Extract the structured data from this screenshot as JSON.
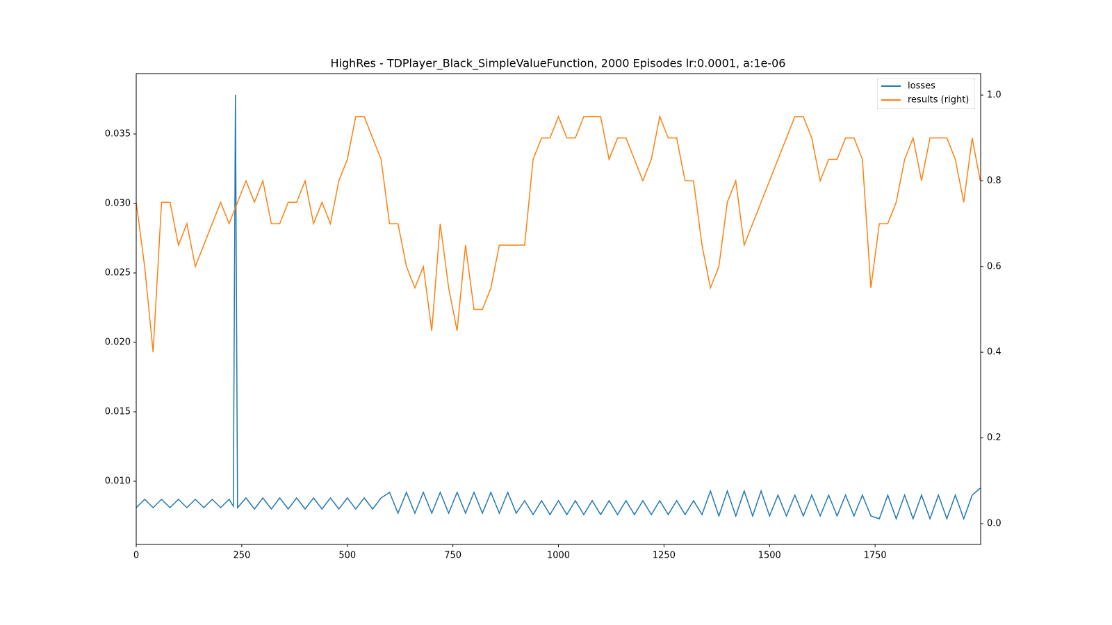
{
  "chart_data": {
    "type": "line",
    "title": "HighRes - TDPlayer_Black_SimpleValueFunction, 2000 Episodes lr:0.0001, a:1e-06",
    "xlim": [
      0,
      2000
    ],
    "xticks": [
      0,
      250,
      500,
      750,
      1000,
      1250,
      1500,
      1750
    ],
    "ylim": [
      0.00545,
      0.03935
    ],
    "yticks": [
      {
        "value": 0.01,
        "label": "0.010"
      },
      0.015,
      {
        "value": 0.02,
        "label": "0.020"
      },
      0.025,
      {
        "value": 0.03,
        "label": "0.030"
      },
      0.035
    ],
    "y2lim": [
      -0.0486,
      1.0502
    ],
    "y2ticks": [
      {
        "value": 0,
        "label": "0.0"
      },
      0.2,
      0.4,
      0.6,
      0.8,
      {
        "value": 1,
        "label": "1.0"
      }
    ],
    "legend": "upper right",
    "series": [
      {
        "name": "losses",
        "color": "#1f77b4",
        "x": [
          0,
          20,
          40,
          60,
          80,
          100,
          120,
          140,
          160,
          180,
          200,
          220,
          230,
          235,
          240,
          260,
          280,
          300,
          320,
          340,
          360,
          380,
          400,
          420,
          440,
          460,
          480,
          500,
          520,
          540,
          560,
          580,
          600,
          620,
          640,
          660,
          680,
          700,
          720,
          740,
          760,
          780,
          800,
          820,
          840,
          860,
          880,
          900,
          920,
          940,
          960,
          980,
          1000,
          1020,
          1040,
          1060,
          1080,
          1100,
          1120,
          1140,
          1160,
          1180,
          1200,
          1220,
          1240,
          1260,
          1280,
          1300,
          1320,
          1340,
          1360,
          1380,
          1400,
          1420,
          1440,
          1460,
          1480,
          1500,
          1520,
          1540,
          1560,
          1580,
          1600,
          1620,
          1640,
          1660,
          1680,
          1700,
          1720,
          1740,
          1760,
          1780,
          1800,
          1820,
          1840,
          1860,
          1880,
          1900,
          1920,
          1940,
          1960,
          1980,
          1999
        ],
        "values": [
          0.0081,
          0.0087,
          0.0081,
          0.0087,
          0.0081,
          0.0087,
          0.0081,
          0.0087,
          0.0081,
          0.0087,
          0.0081,
          0.0087,
          0.0082,
          0.0378,
          0.0081,
          0.0088,
          0.008,
          0.0088,
          0.008,
          0.0088,
          0.008,
          0.0088,
          0.008,
          0.0088,
          0.008,
          0.0088,
          0.008,
          0.0088,
          0.008,
          0.0088,
          0.008,
          0.0088,
          0.0092,
          0.0077,
          0.0092,
          0.0077,
          0.0092,
          0.0077,
          0.0092,
          0.0077,
          0.0092,
          0.0077,
          0.0092,
          0.0077,
          0.0092,
          0.0077,
          0.0092,
          0.0077,
          0.0086,
          0.0076,
          0.0086,
          0.0076,
          0.0086,
          0.0076,
          0.0086,
          0.0076,
          0.0086,
          0.0076,
          0.0086,
          0.0076,
          0.0086,
          0.0076,
          0.0086,
          0.0076,
          0.0086,
          0.0076,
          0.0086,
          0.0076,
          0.0086,
          0.0076,
          0.0093,
          0.0075,
          0.0093,
          0.0075,
          0.0093,
          0.0075,
          0.0093,
          0.0075,
          0.009,
          0.0075,
          0.009,
          0.0075,
          0.009,
          0.0075,
          0.009,
          0.0075,
          0.009,
          0.0075,
          0.009,
          0.0075,
          0.0073,
          0.009,
          0.0073,
          0.009,
          0.0073,
          0.009,
          0.0073,
          0.009,
          0.0073,
          0.009,
          0.0073,
          0.009,
          0.0095
        ]
      },
      {
        "name": "results (right)",
        "color": "#ff7f0e",
        "axis": "y2",
        "x": [
          0,
          20,
          40,
          60,
          80,
          100,
          120,
          140,
          160,
          180,
          200,
          220,
          240,
          260,
          280,
          300,
          320,
          340,
          360,
          380,
          400,
          420,
          440,
          460,
          480,
          500,
          520,
          540,
          560,
          580,
          600,
          620,
          640,
          660,
          680,
          700,
          720,
          740,
          760,
          780,
          800,
          820,
          840,
          860,
          880,
          900,
          920,
          940,
          960,
          980,
          1000,
          1020,
          1040,
          1060,
          1080,
          1100,
          1120,
          1140,
          1160,
          1180,
          1200,
          1220,
          1240,
          1260,
          1280,
          1300,
          1320,
          1340,
          1360,
          1380,
          1400,
          1420,
          1440,
          1460,
          1480,
          1500,
          1520,
          1540,
          1560,
          1580,
          1600,
          1620,
          1640,
          1660,
          1680,
          1700,
          1720,
          1740,
          1760,
          1780,
          1800,
          1820,
          1840,
          1860,
          1880,
          1900,
          1920,
          1940,
          1960,
          1980,
          1999
        ],
        "values": [
          0.75,
          0.6,
          0.4,
          0.75,
          0.75,
          0.65,
          0.7,
          0.6,
          0.65,
          0.7,
          0.75,
          0.7,
          0.75,
          0.8,
          0.75,
          0.8,
          0.7,
          0.7,
          0.75,
          0.75,
          0.8,
          0.7,
          0.75,
          0.7,
          0.8,
          0.85,
          0.95,
          0.95,
          0.9,
          0.85,
          0.7,
          0.7,
          0.6,
          0.55,
          0.6,
          0.45,
          0.7,
          0.55,
          0.45,
          0.65,
          0.5,
          0.5,
          0.55,
          0.65,
          0.65,
          0.65,
          0.65,
          0.85,
          0.9,
          0.9,
          0.95,
          0.9,
          0.9,
          0.95,
          0.95,
          0.95,
          0.85,
          0.9,
          0.9,
          0.85,
          0.8,
          0.85,
          0.95,
          0.9,
          0.9,
          0.8,
          0.8,
          0.65,
          0.55,
          0.6,
          0.75,
          0.8,
          0.65,
          0.7,
          0.75,
          0.8,
          0.85,
          0.9,
          0.95,
          0.95,
          0.9,
          0.8,
          0.85,
          0.85,
          0.9,
          0.9,
          0.85,
          0.55,
          0.7,
          0.7,
          0.75,
          0.85,
          0.9,
          0.8,
          0.9,
          0.9,
          0.9,
          0.85,
          0.75,
          0.9,
          0.8
        ]
      }
    ]
  }
}
